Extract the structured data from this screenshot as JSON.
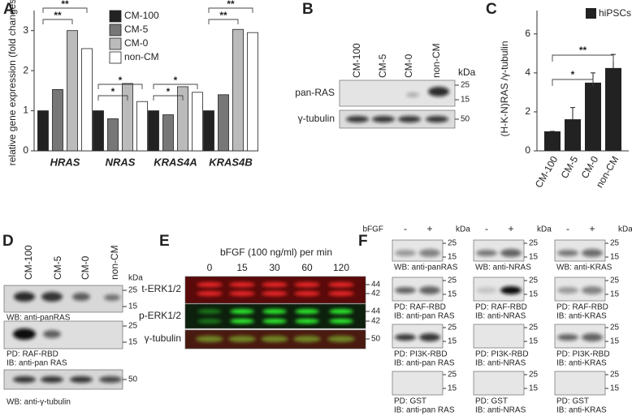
{
  "chart_data": [
    {
      "type": "grouped-bar",
      "letter": "A",
      "y_label": "relative gene expression (fold changes)",
      "categories": [
        "HRAS",
        "NRAS",
        "KRAS4A",
        "KRAS4B"
      ],
      "series": [
        {
          "name": "CM-100",
          "color": "#222222",
          "values": [
            1,
            1,
            1,
            1
          ]
        },
        {
          "name": "CM-5",
          "color": "#777777",
          "values": [
            1.53,
            0.8,
            0.9,
            1.4
          ]
        },
        {
          "name": "CM-0",
          "color": "#bbbbbb",
          "values": [
            3.0,
            1.68,
            1.6,
            3.03
          ]
        },
        {
          "name": "non-CM",
          "color": "#ffffff",
          "values": [
            2.55,
            1.23,
            1.46,
            2.95
          ]
        }
      ],
      "ylim": [
        0,
        3.5
      ],
      "yticks": [
        0,
        1,
        2,
        3
      ],
      "significance": [
        "**",
        "**",
        "*",
        "*",
        "*",
        "*",
        "**",
        "**"
      ]
    },
    {
      "type": "bar",
      "letter": "C",
      "y_label": "(H-K-N)RAS /γ-tubulin",
      "legend": "hiPSCs",
      "color": "#222222",
      "categories": [
        "CM-100",
        "CM-5",
        "CM-0",
        "non-CM"
      ],
      "values": [
        1,
        1.62,
        3.5,
        4.25
      ],
      "errors": [
        0,
        0.6,
        0.5,
        0.7
      ],
      "ylim": [
        0,
        7.2
      ],
      "yticks": [
        0,
        2,
        4,
        6
      ],
      "significance": [
        "*",
        "**"
      ]
    }
  ],
  "blot_b": {
    "letter": "B",
    "lanes": [
      "CM-100",
      "CM-5",
      "CM-0",
      "non-CM"
    ],
    "kda": "kDa",
    "rows": [
      {
        "label": "pan-RAS",
        "markers": [
          "25",
          "15"
        ]
      },
      {
        "label": "γ-tubulin",
        "markers": [
          "50"
        ]
      }
    ]
  },
  "blot_d": {
    "letter": "D",
    "lanes": [
      "CM-100",
      "CM-5",
      "CM-0",
      "non-CM"
    ],
    "kda": "kDa",
    "rows": [
      {
        "caption": [
          "WB: anti-panRAS"
        ],
        "markers": [
          "25",
          "15"
        ]
      },
      {
        "caption": [
          "PD: RAF-RBD",
          "IB: anti-pan RAS"
        ],
        "markers": [
          "25",
          "15"
        ]
      },
      {
        "caption": [
          "WB: anti-γ-tubulin"
        ],
        "markers": [
          "50"
        ]
      }
    ]
  },
  "blot_e": {
    "letter": "E",
    "treatment": "bFGF (100 ng/ml) per min",
    "lanes": [
      "0",
      "15",
      "30",
      "60",
      "120"
    ],
    "rows": [
      {
        "label": "t-ERK1/2",
        "markers": [
          "44",
          "42"
        ]
      },
      {
        "label": "p-ERK1/2",
        "markers": [
          "44",
          "42"
        ]
      },
      {
        "label": "γ-tubulin",
        "markers": [
          "50"
        ]
      }
    ]
  },
  "blot_f": {
    "letter": "F",
    "treatment": "bFGF",
    "lanes": [
      "-",
      "+"
    ],
    "kda": "kDa",
    "markers": [
      "25",
      "15"
    ],
    "columns": [
      {
        "captions": [
          [
            "WB: anti-panRAS"
          ],
          [
            "PD: RAF-RBD",
            "IB: anti-pan RAS"
          ],
          [
            "PD: PI3K-RBD",
            "IB: anti-pan RAS"
          ],
          [
            "PD: GST",
            "IB: anti-pan RAS"
          ]
        ]
      },
      {
        "captions": [
          [
            "WB: anti-NRAS"
          ],
          [
            "PD: RAF-RBD",
            "IB: anti-NRAS"
          ],
          [
            "PD: PI3K-RBD",
            "IB: anti-NRAS"
          ],
          [
            "PD: GST",
            "IB: anti-NRAS"
          ]
        ]
      },
      {
        "captions": [
          [
            "WB: anti-KRAS"
          ],
          [
            "PD: RAF-RBD",
            "IB: anti-KRAS"
          ],
          [
            "PD: PI3K-RBD",
            "IB: anti-KRAS"
          ],
          [
            "PD: GST",
            "IB: anti-KRAS"
          ]
        ]
      }
    ]
  }
}
